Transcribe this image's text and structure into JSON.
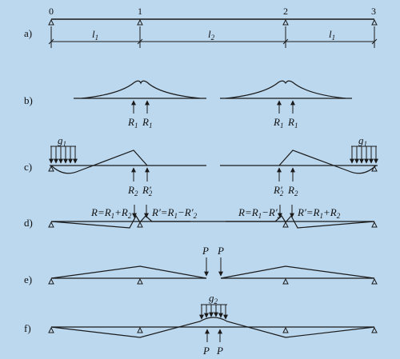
{
  "nodes": [
    "0",
    "1",
    "2",
    "3"
  ],
  "spans": {
    "l1_left": {
      "main": "l",
      "sub": "1"
    },
    "l2": {
      "main": "l",
      "sub": "2"
    },
    "l1_right": {
      "main": "l",
      "sub": "1"
    }
  },
  "rows": {
    "a": "a)",
    "b": "b)",
    "c": "c)",
    "d": "d)",
    "e": "e)",
    "f": "f)"
  },
  "labels": {
    "R1": {
      "main": "R",
      "sub": "1"
    },
    "R2": {
      "main": "R",
      "sub": "2"
    },
    "R2p": {
      "main": "R",
      "sub": "2",
      "prime": "′"
    },
    "g1": {
      "main": "g",
      "sub": "1"
    },
    "g2": {
      "main": "g",
      "sub": "2"
    },
    "P": "P",
    "eq_left_1": "R=R",
    "eq_left_1b": "1",
    "eq_left_2": "+R",
    "eq_left_2b": "2",
    "eq_left_3": "R′=R",
    "eq_left_3b": "1",
    "eq_left_4": "−R′",
    "eq_left_4b": "2",
    "eq_right_1": "R=R",
    "eq_right_1b": "1",
    "eq_right_2": "−R′",
    "eq_right_2b": "2",
    "eq_right_3": "R′=R",
    "eq_right_3b": "1",
    "eq_right_4": "+R",
    "eq_right_4b": "2"
  }
}
